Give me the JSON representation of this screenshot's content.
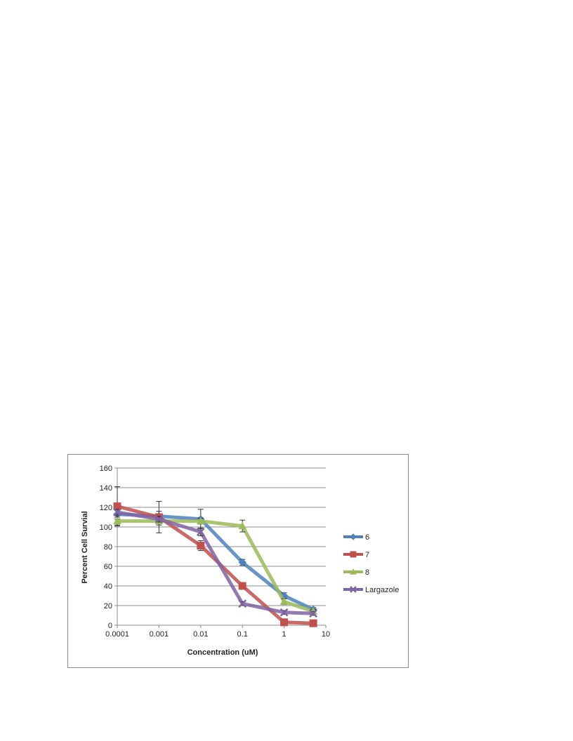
{
  "chart_data": {
    "type": "line",
    "title": "",
    "xlabel": "Concentration  (uM)",
    "ylabel": "Percent Cell Survial",
    "x_scale": "log",
    "x_ticks": [
      "0.0001",
      "0.001",
      "0.01",
      "0.1",
      "1",
      "10"
    ],
    "x_tick_values": [
      0.0001,
      0.001,
      0.01,
      0.1,
      1,
      10
    ],
    "y_ticks": [
      "0",
      "20",
      "40",
      "60",
      "80",
      "100",
      "120",
      "140",
      "160"
    ],
    "y_tick_values": [
      0,
      20,
      40,
      60,
      80,
      100,
      120,
      140,
      160
    ],
    "ylim": [
      0,
      160
    ],
    "xlim": [
      0.0001,
      10
    ],
    "grid": "horizontal",
    "legend_position": "right",
    "x": [
      0.0001,
      0.001,
      0.01,
      0.1,
      1,
      5
    ],
    "series": [
      {
        "name": "6",
        "marker": "diamond",
        "color": "#4f81bd",
        "values": [
          113,
          111,
          108,
          64,
          30,
          16
        ],
        "errors": [
          5,
          5,
          10,
          3,
          3,
          2
        ]
      },
      {
        "name": "7",
        "marker": "square",
        "color": "#c0504d",
        "values": [
          121,
          110,
          81,
          40,
          3,
          2
        ],
        "errors": [
          20,
          16,
          5,
          3,
          2,
          2
        ]
      },
      {
        "name": "8",
        "marker": "triangle",
        "color": "#9bbb59",
        "values": [
          106,
          106,
          106,
          101,
          24,
          14
        ],
        "errors": [
          4,
          4,
          3,
          6,
          3,
          2
        ]
      },
      {
        "name": "Largazole",
        "marker": "x",
        "color": "#8064a2",
        "values": [
          115,
          108,
          95,
          22,
          13,
          12
        ],
        "errors": [
          3,
          3,
          4,
          2,
          2,
          2
        ]
      }
    ]
  }
}
